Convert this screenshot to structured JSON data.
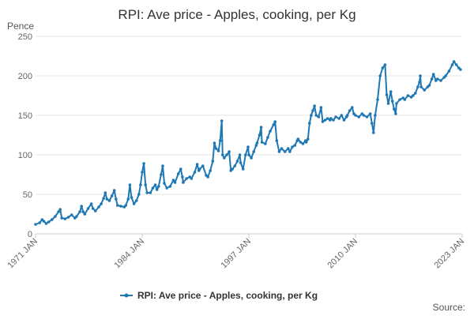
{
  "chart_data": {
    "type": "line",
    "title": "RPI: Ave price - Apples, cooking, per Kg",
    "ylabel": "Pence",
    "xlabel": "",
    "ylim": [
      0,
      250
    ],
    "yticks": [
      0,
      50,
      100,
      150,
      200,
      250
    ],
    "xlim": [
      1971,
      2023
    ],
    "xticks": [
      {
        "value": 1971,
        "label": "1971 JAN"
      },
      {
        "value": 1984,
        "label": "1984 JAN"
      },
      {
        "value": 1997,
        "label": "1997 JAN"
      },
      {
        "value": 2010,
        "label": "2010 JAN"
      },
      {
        "value": 2023,
        "label": "2023 JAN"
      }
    ],
    "grid": true,
    "legend": "bottom-center",
    "series": [
      {
        "name": "RPI: Ave price - Apples, cooking, per Kg",
        "color": "#1f78b4",
        "points": [
          [
            1971.0,
            12
          ],
          [
            1971.5,
            14
          ],
          [
            1971.8,
            18
          ],
          [
            1972.0,
            16
          ],
          [
            1972.3,
            13
          ],
          [
            1972.6,
            15
          ],
          [
            1973.0,
            18
          ],
          [
            1973.4,
            22
          ],
          [
            1973.8,
            28
          ],
          [
            1974.0,
            31
          ],
          [
            1974.2,
            20
          ],
          [
            1974.6,
            19
          ],
          [
            1975.0,
            21
          ],
          [
            1975.4,
            24
          ],
          [
            1975.8,
            20
          ],
          [
            1976.0,
            22
          ],
          [
            1976.4,
            28
          ],
          [
            1976.6,
            35
          ],
          [
            1976.8,
            28
          ],
          [
            1977.0,
            25
          ],
          [
            1977.4,
            32
          ],
          [
            1977.8,
            38
          ],
          [
            1978.0,
            32
          ],
          [
            1978.3,
            29
          ],
          [
            1978.7,
            34
          ],
          [
            1979.0,
            38
          ],
          [
            1979.3,
            45
          ],
          [
            1979.5,
            52
          ],
          [
            1979.7,
            44
          ],
          [
            1980.0,
            42
          ],
          [
            1980.3,
            48
          ],
          [
            1980.6,
            55
          ],
          [
            1980.8,
            44
          ],
          [
            1981.0,
            36
          ],
          [
            1981.4,
            35
          ],
          [
            1981.8,
            34
          ],
          [
            1982.0,
            36
          ],
          [
            1982.3,
            44
          ],
          [
            1982.5,
            62
          ],
          [
            1982.7,
            46
          ],
          [
            1983.0,
            38
          ],
          [
            1983.3,
            42
          ],
          [
            1983.6,
            50
          ],
          [
            1983.8,
            62
          ],
          [
            1984.0,
            78
          ],
          [
            1984.2,
            89
          ],
          [
            1984.4,
            62
          ],
          [
            1984.6,
            52
          ],
          [
            1985.0,
            52
          ],
          [
            1985.3,
            58
          ],
          [
            1985.6,
            62
          ],
          [
            1985.8,
            56
          ],
          [
            1986.0,
            60
          ],
          [
            1986.3,
            75
          ],
          [
            1986.5,
            86
          ],
          [
            1986.7,
            64
          ],
          [
            1987.0,
            58
          ],
          [
            1987.4,
            60
          ],
          [
            1987.8,
            68
          ],
          [
            1988.0,
            65
          ],
          [
            1988.4,
            76
          ],
          [
            1988.7,
            82
          ],
          [
            1988.9,
            72
          ],
          [
            1989.0,
            65
          ],
          [
            1989.4,
            70
          ],
          [
            1989.8,
            72
          ],
          [
            1990.0,
            70
          ],
          [
            1990.4,
            78
          ],
          [
            1990.7,
            88
          ],
          [
            1990.9,
            80
          ],
          [
            1991.0,
            82
          ],
          [
            1991.4,
            86
          ],
          [
            1991.8,
            74
          ],
          [
            1992.0,
            72
          ],
          [
            1992.3,
            80
          ],
          [
            1992.6,
            92
          ],
          [
            1992.8,
            115
          ],
          [
            1993.0,
            108
          ],
          [
            1993.3,
            105
          ],
          [
            1993.5,
            118
          ],
          [
            1993.7,
            143
          ],
          [
            1993.8,
            100
          ],
          [
            1994.0,
            96
          ],
          [
            1994.3,
            100
          ],
          [
            1994.6,
            104
          ],
          [
            1994.8,
            80
          ],
          [
            1995.0,
            82
          ],
          [
            1995.3,
            86
          ],
          [
            1995.6,
            92
          ],
          [
            1995.9,
            100
          ],
          [
            1996.0,
            90
          ],
          [
            1996.3,
            82
          ],
          [
            1996.6,
            100
          ],
          [
            1996.9,
            110
          ],
          [
            1997.0,
            100
          ],
          [
            1997.3,
            96
          ],
          [
            1997.6,
            104
          ],
          [
            1997.9,
            112
          ],
          [
            1998.0,
            115
          ],
          [
            1998.3,
            125
          ],
          [
            1998.5,
            135
          ],
          [
            1998.6,
            116
          ],
          [
            1999.0,
            114
          ],
          [
            1999.3,
            122
          ],
          [
            1999.6,
            130
          ],
          [
            2000.0,
            138
          ],
          [
            2000.2,
            142
          ],
          [
            2000.4,
            118
          ],
          [
            2000.7,
            104
          ],
          [
            2001.0,
            108
          ],
          [
            2001.4,
            104
          ],
          [
            2001.8,
            108
          ],
          [
            2002.0,
            104
          ],
          [
            2002.3,
            110
          ],
          [
            2002.6,
            112
          ],
          [
            2002.9,
            118
          ],
          [
            2003.0,
            120
          ],
          [
            2003.3,
            116
          ],
          [
            2003.6,
            114
          ],
          [
            2003.9,
            118
          ],
          [
            2004.0,
            116
          ],
          [
            2004.2,
            120
          ],
          [
            2004.4,
            140
          ],
          [
            2004.6,
            150
          ],
          [
            2004.8,
            156
          ],
          [
            2005.0,
            162
          ],
          [
            2005.2,
            150
          ],
          [
            2005.5,
            148
          ],
          [
            2005.8,
            160
          ],
          [
            2006.0,
            142
          ],
          [
            2006.3,
            144
          ],
          [
            2006.6,
            146
          ],
          [
            2006.9,
            144
          ],
          [
            2007.0,
            146
          ],
          [
            2007.3,
            144
          ],
          [
            2007.6,
            148
          ],
          [
            2008.0,
            146
          ],
          [
            2008.3,
            150
          ],
          [
            2008.6,
            144
          ],
          [
            2008.9,
            148
          ],
          [
            2009.0,
            150
          ],
          [
            2009.3,
            156
          ],
          [
            2009.6,
            160
          ],
          [
            2009.8,
            152
          ],
          [
            2010.0,
            150
          ],
          [
            2010.4,
            148
          ],
          [
            2010.8,
            152
          ],
          [
            2011.0,
            150
          ],
          [
            2011.4,
            148
          ],
          [
            2011.8,
            152
          ],
          [
            2012.0,
            140
          ],
          [
            2012.2,
            128
          ],
          [
            2012.4,
            150
          ],
          [
            2012.7,
            170
          ],
          [
            2013.0,
            200
          ],
          [
            2013.3,
            210
          ],
          [
            2013.6,
            214
          ],
          [
            2013.8,
            176
          ],
          [
            2014.0,
            165
          ],
          [
            2014.3,
            180
          ],
          [
            2014.5,
            168
          ],
          [
            2014.7,
            158
          ],
          [
            2014.9,
            152
          ],
          [
            2015.0,
            165
          ],
          [
            2015.4,
            170
          ],
          [
            2015.8,
            172
          ],
          [
            2016.0,
            170
          ],
          [
            2016.4,
            175
          ],
          [
            2016.8,
            173
          ],
          [
            2017.0,
            175
          ],
          [
            2017.3,
            178
          ],
          [
            2017.6,
            186
          ],
          [
            2017.8,
            192
          ],
          [
            2017.9,
            200
          ],
          [
            2018.0,
            186
          ],
          [
            2018.4,
            182
          ],
          [
            2018.8,
            186
          ],
          [
            2019.0,
            188
          ],
          [
            2019.3,
            196
          ],
          [
            2019.5,
            202
          ],
          [
            2019.8,
            194
          ],
          [
            2020.0,
            196
          ],
          [
            2020.4,
            194
          ],
          [
            2020.8,
            198
          ],
          [
            2021.0,
            200
          ],
          [
            2021.4,
            206
          ],
          [
            2021.8,
            214
          ],
          [
            2022.0,
            218
          ],
          [
            2022.3,
            214
          ],
          [
            2022.6,
            210
          ],
          [
            2022.8,
            208
          ]
        ]
      }
    ],
    "source_label": "Source:"
  }
}
